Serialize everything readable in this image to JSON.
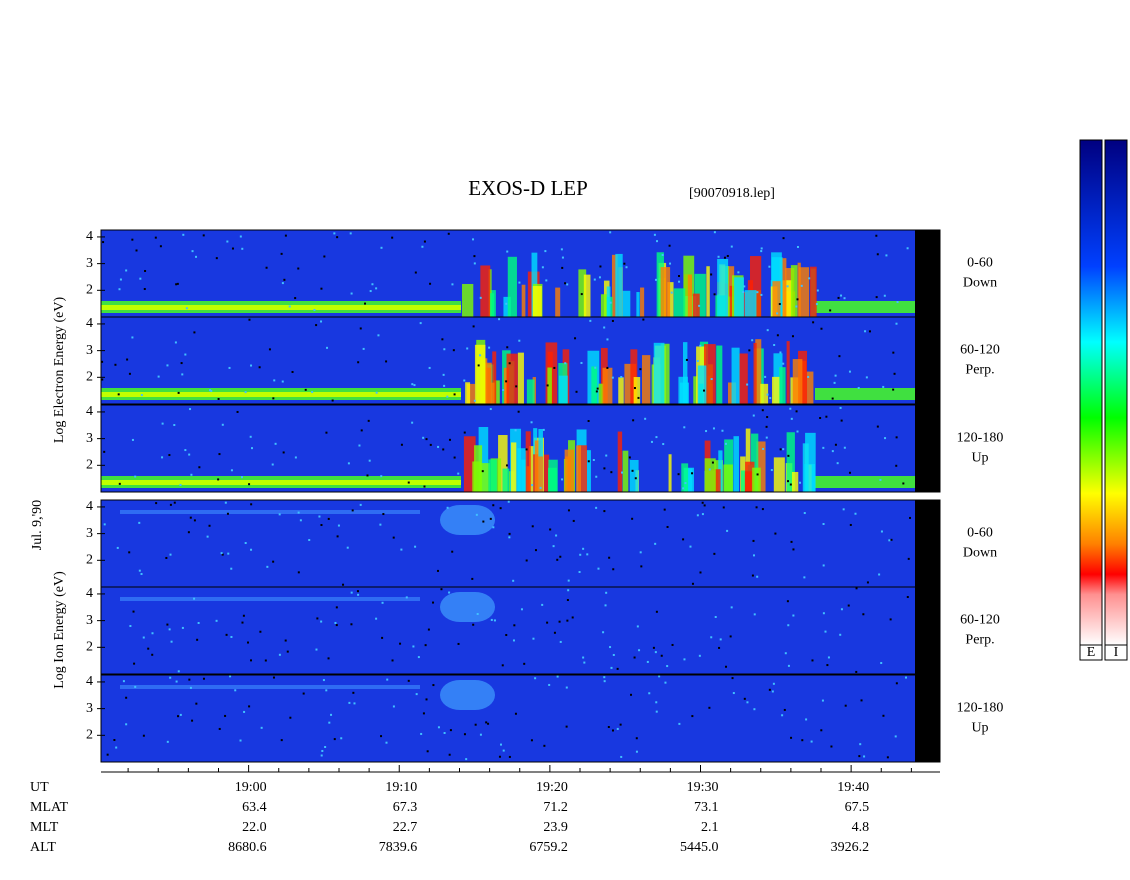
{
  "chart_data": {
    "type": "spectrogram",
    "title": "EXOS-D LEP",
    "file_label": "[90070918.lep]",
    "date_label": "Jul. 9,'90",
    "group_labels": [
      "Log Electron Energy (eV)",
      "Log Ion Energy (eV)"
    ],
    "panels": [
      {
        "group": 0,
        "range": "0-60",
        "direction": "Down"
      },
      {
        "group": 0,
        "range": "60-120",
        "direction": "Perp."
      },
      {
        "group": 0,
        "range": "120-180",
        "direction": "Up"
      },
      {
        "group": 1,
        "range": "0-60",
        "direction": "Down"
      },
      {
        "group": 1,
        "range": "60-120",
        "direction": "Perp."
      },
      {
        "group": 1,
        "range": "120-180",
        "direction": "Up"
      }
    ],
    "ylim": [
      1,
      4.26
    ],
    "yticks": [
      2,
      3,
      4
    ],
    "xlim": [
      1130.2,
      1185.9
    ],
    "xticks": [
      {
        "value": 1140,
        "label": "19:00"
      },
      {
        "value": 1150,
        "label": "19:10"
      },
      {
        "value": 1160,
        "label": "19:20"
      },
      {
        "value": 1170,
        "label": "19:30"
      },
      {
        "value": 1180,
        "label": "19:40"
      }
    ],
    "xminor": [
      1132,
      1134,
      1136,
      1138,
      1142,
      1144,
      1146,
      1148,
      1152,
      1154,
      1156,
      1158,
      1162,
      1164,
      1166,
      1168,
      1172,
      1174,
      1176,
      1178,
      1182,
      1184
    ],
    "ephemeris": {
      "labels": [
        "UT",
        "MLAT",
        "MLT",
        "ALT"
      ],
      "rows": [
        [
          "63.4",
          "67.3",
          "71.2",
          "73.1",
          "67.5"
        ],
        [
          "22.0",
          "22.7",
          "23.9",
          "2.1",
          "4.8"
        ],
        [
          "8680.6",
          "7839.6",
          "6759.2",
          "5445.0",
          "3926.2"
        ]
      ]
    },
    "colorbar_labels": [
      "E",
      "I"
    ]
  }
}
